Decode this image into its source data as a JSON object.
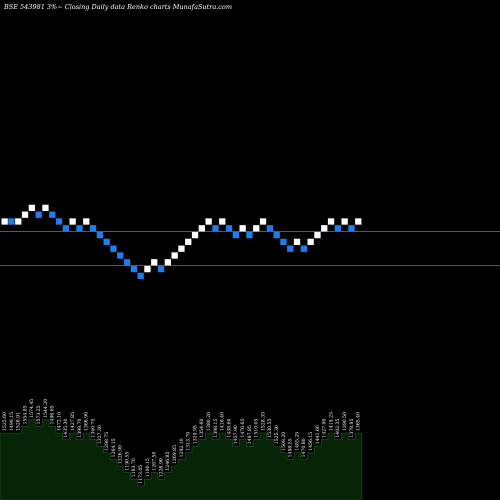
{
  "header": {
    "title": "BSE 543981 3%~ Closing Daily data Renko charts MunafaSutra.com"
  },
  "colors": {
    "background": "#000000",
    "up_brick": "#ffffff",
    "down_brick": "#1e7ef0",
    "reference_line": "#b4622a",
    "volume_area": "#082408",
    "volume_outline": "#1f5a1f"
  },
  "chart_data": {
    "type": "renko",
    "reference_lines": [
      1,
      6
    ],
    "bricks": [
      {
        "dir": "up",
        "level": 0
      },
      {
        "dir": "down",
        "level": 0
      },
      {
        "dir": "up",
        "level": 0
      },
      {
        "dir": "up",
        "level": 1
      },
      {
        "dir": "up",
        "level": 2
      },
      {
        "dir": "down",
        "level": 1
      },
      {
        "dir": "up",
        "level": 2
      },
      {
        "dir": "down",
        "level": 1
      },
      {
        "dir": "down",
        "level": 0
      },
      {
        "dir": "down",
        "level": -1
      },
      {
        "dir": "up",
        "level": 0
      },
      {
        "dir": "down",
        "level": -1
      },
      {
        "dir": "up",
        "level": 0
      },
      {
        "dir": "down",
        "level": -1
      },
      {
        "dir": "down",
        "level": -2
      },
      {
        "dir": "down",
        "level": -3
      },
      {
        "dir": "down",
        "level": -4
      },
      {
        "dir": "down",
        "level": -5
      },
      {
        "dir": "down",
        "level": -6
      },
      {
        "dir": "down",
        "level": -7
      },
      {
        "dir": "down",
        "level": -8
      },
      {
        "dir": "up",
        "level": -7
      },
      {
        "dir": "up",
        "level": -6
      },
      {
        "dir": "down",
        "level": -7
      },
      {
        "dir": "up",
        "level": -6
      },
      {
        "dir": "up",
        "level": -5
      },
      {
        "dir": "up",
        "level": -4
      },
      {
        "dir": "up",
        "level": -3
      },
      {
        "dir": "up",
        "level": -2
      },
      {
        "dir": "up",
        "level": -1
      },
      {
        "dir": "up",
        "level": 0
      },
      {
        "dir": "down",
        "level": -1
      },
      {
        "dir": "up",
        "level": 0
      },
      {
        "dir": "down",
        "level": -1
      },
      {
        "dir": "down",
        "level": -2
      },
      {
        "dir": "up",
        "level": -1
      },
      {
        "dir": "down",
        "level": -2
      },
      {
        "dir": "up",
        "level": -1
      },
      {
        "dir": "up",
        "level": 0
      },
      {
        "dir": "down",
        "level": -1
      },
      {
        "dir": "down",
        "level": -2
      },
      {
        "dir": "down",
        "level": -3
      },
      {
        "dir": "down",
        "level": -4
      },
      {
        "dir": "up",
        "level": -3
      },
      {
        "dir": "down",
        "level": -4
      },
      {
        "dir": "up",
        "level": -3
      },
      {
        "dir": "up",
        "level": -2
      },
      {
        "dir": "up",
        "level": -1
      },
      {
        "dir": "up",
        "level": 0
      },
      {
        "dir": "down",
        "level": -1
      },
      {
        "dir": "up",
        "level": 0
      },
      {
        "dir": "down",
        "level": -1
      },
      {
        "dir": "up",
        "level": 0
      }
    ],
    "volume_labels": [
      "1525.60",
      "1490.15",
      "1528.91",
      "1554.85",
      "1574.45",
      "1573.25",
      "1544.20",
      "1496.65",
      "1472.10",
      "1435.30",
      "1427.85",
      "1399.70",
      "1366.90",
      "1340.75",
      "1327.30",
      "1298.75",
      "1264.15",
      "1226.90",
      "1190.55",
      "1163.70",
      "1173.05",
      "1190.15",
      "1207.50",
      "1226.90",
      "1246.85",
      "1269.85",
      "1292.10",
      "1313.70",
      "1329.95",
      "1354.60",
      "1380.20",
      "1398.15",
      "1418.40",
      "1438.60",
      "1457.90",
      "1476.65",
      "1497.85",
      "1510.05",
      "1528.35",
      "1530.55",
      "1525.30",
      "1508.20",
      "1498.55",
      "1485.25",
      "1470.80",
      "1456.15",
      "1441.60",
      "1427.90",
      "1414.25",
      "1402.35",
      "1390.50",
      "1378.95",
      "1365.40"
    ]
  }
}
